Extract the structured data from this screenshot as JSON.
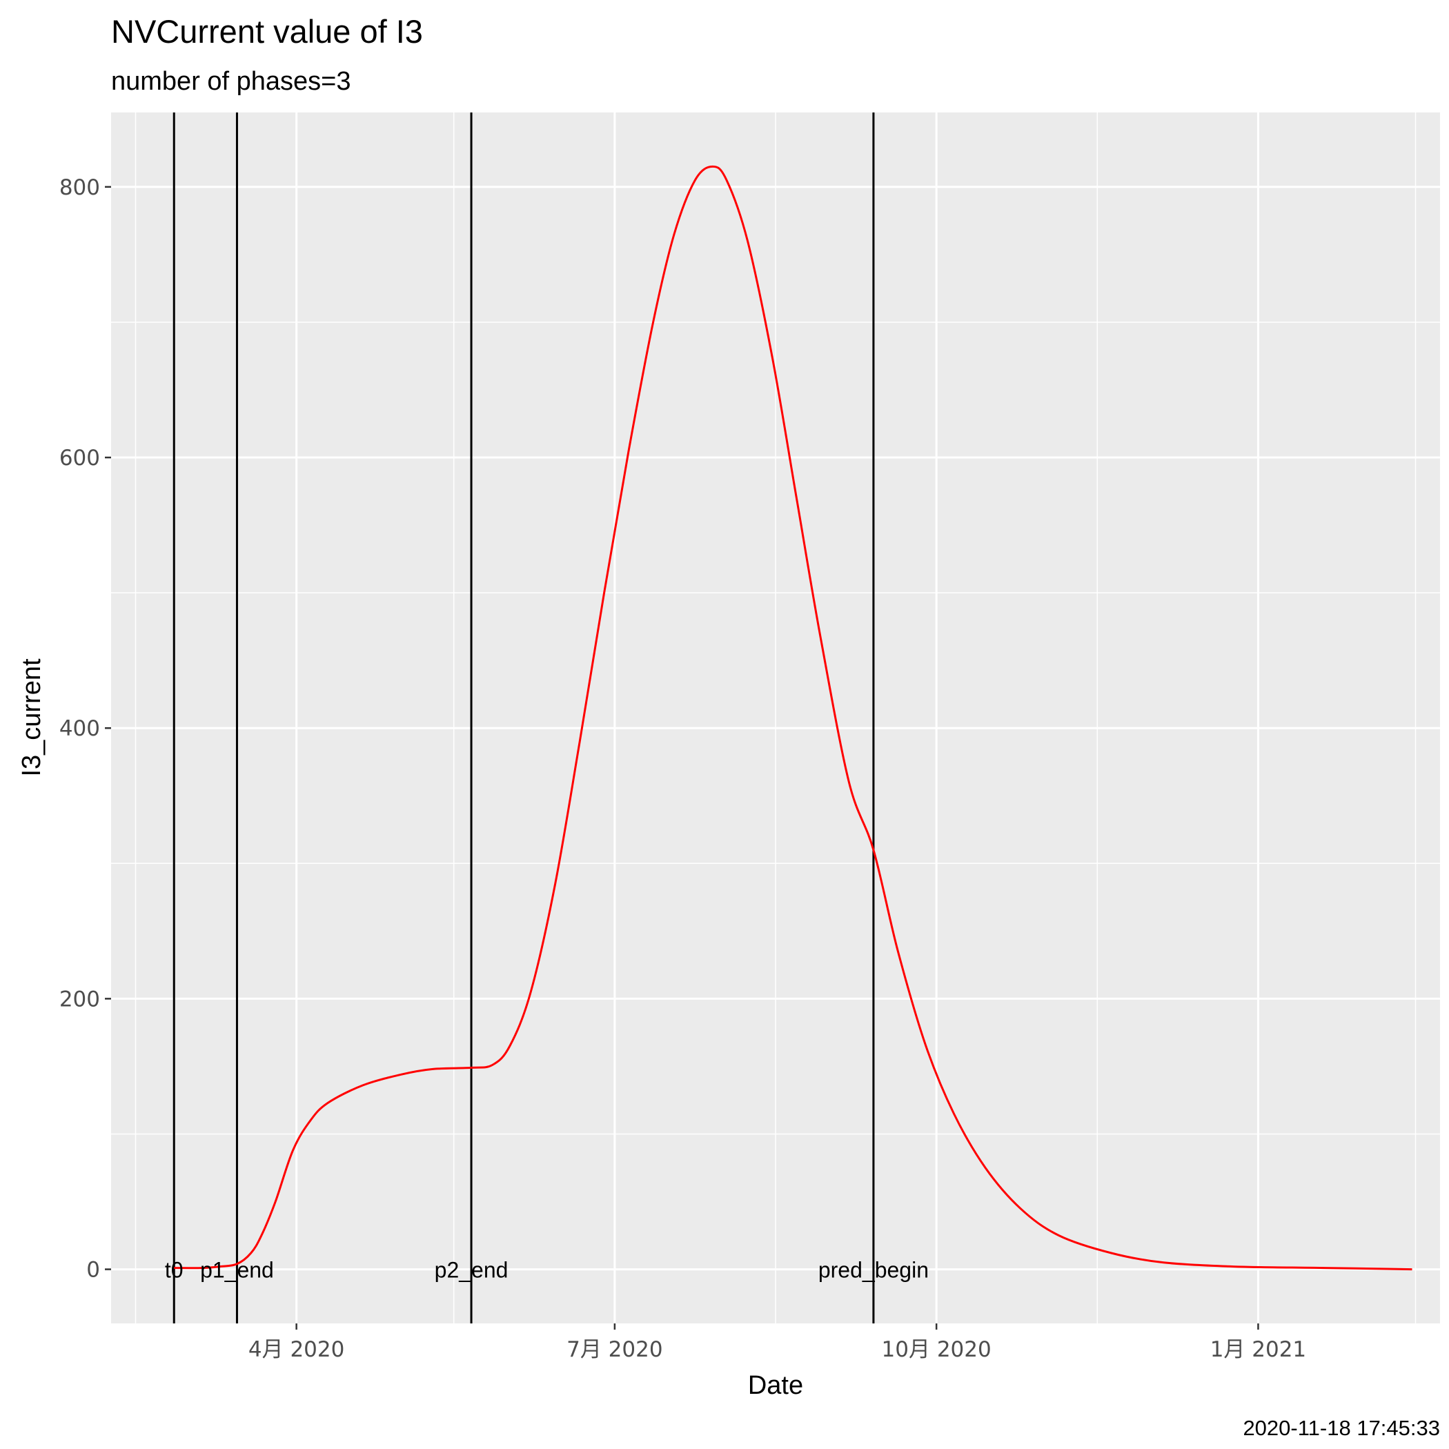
{
  "chart_data": {
    "type": "line",
    "title": "NVCurrent value of I3",
    "subtitle": "number of phases=3",
    "xlabel": "Date",
    "ylabel": "I3_current",
    "caption": "2020-11-18 17:45:33",
    "x_ticks": [
      {
        "date": "2020-04-01",
        "label": "4月 2020"
      },
      {
        "date": "2020-07-01",
        "label": "7月 2020"
      },
      {
        "date": "2020-10-01",
        "label": "10月 2020"
      },
      {
        "date": "2021-01-01",
        "label": "1月 2021"
      }
    ],
    "x_minor_ticks": [
      "2020-02-15",
      "2020-05-16",
      "2020-08-16",
      "2020-11-16",
      "2021-02-15"
    ],
    "xlim": [
      "2020-02-08",
      "2021-02-22"
    ],
    "y_ticks": [
      0,
      200,
      400,
      600,
      800
    ],
    "ylim": [
      -40,
      855
    ],
    "grid": true,
    "line_color": "#ff0000",
    "markers": [
      {
        "date": "2020-02-26",
        "label": "t0"
      },
      {
        "date": "2020-03-15",
        "label": "p1_end"
      },
      {
        "date": "2020-05-21",
        "label": "p2_end"
      },
      {
        "date": "2020-09-13",
        "label": "pred_begin"
      }
    ],
    "series": [
      {
        "color": "#ff0000",
        "points": [
          [
            "2020-02-26",
            1
          ],
          [
            "2020-03-05",
            1
          ],
          [
            "2020-03-10",
            2
          ],
          [
            "2020-03-15",
            4
          ],
          [
            "2020-03-19",
            12
          ],
          [
            "2020-03-22",
            25
          ],
          [
            "2020-03-26",
            50
          ],
          [
            "2020-03-31",
            88
          ],
          [
            "2020-04-05",
            110
          ],
          [
            "2020-04-10",
            123
          ],
          [
            "2020-04-20",
            136
          ],
          [
            "2020-05-01",
            144
          ],
          [
            "2020-05-10",
            148
          ],
          [
            "2020-05-21",
            149
          ],
          [
            "2020-05-27",
            151
          ],
          [
            "2020-06-01",
            165
          ],
          [
            "2020-06-07",
            205
          ],
          [
            "2020-06-14",
            285
          ],
          [
            "2020-06-21",
            390
          ],
          [
            "2020-06-28",
            500
          ],
          [
            "2020-07-05",
            605
          ],
          [
            "2020-07-12",
            700
          ],
          [
            "2020-07-18",
            765
          ],
          [
            "2020-07-24",
            805
          ],
          [
            "2020-07-29",
            815
          ],
          [
            "2020-08-02",
            805
          ],
          [
            "2020-08-08",
            760
          ],
          [
            "2020-08-15",
            675
          ],
          [
            "2020-08-22",
            570
          ],
          [
            "2020-08-29",
            465
          ],
          [
            "2020-09-06",
            360
          ],
          [
            "2020-09-13",
            310
          ],
          [
            "2020-09-20",
            235
          ],
          [
            "2020-09-28",
            165
          ],
          [
            "2020-10-06",
            115
          ],
          [
            "2020-10-15",
            75
          ],
          [
            "2020-10-25",
            45
          ],
          [
            "2020-11-05",
            25
          ],
          [
            "2020-11-20",
            12
          ],
          [
            "2020-12-05",
            5
          ],
          [
            "2020-12-25",
            2
          ],
          [
            "2021-01-20",
            1
          ],
          [
            "2021-02-14",
            0
          ]
        ]
      }
    ]
  }
}
